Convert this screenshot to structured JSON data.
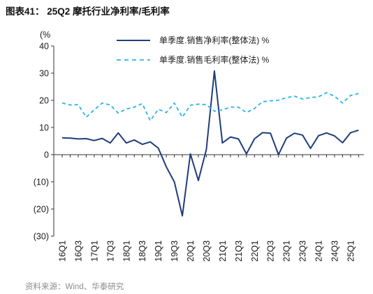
{
  "header": {
    "title": "图表41： 25Q2 摩托行业净利率/毛利率"
  },
  "chart_data": {
    "type": "line",
    "ylabel": "(%",
    "ylim": [
      -30,
      40
    ],
    "yticks": [
      40,
      30,
      20,
      10,
      0,
      -10,
      -20,
      -30
    ],
    "ytick_labels": [
      "40",
      "30",
      "20",
      "10",
      "0",
      "(10)",
      "(20)",
      "(30)"
    ],
    "x_tick_labels": [
      "16Q1",
      "16Q3",
      "17Q1",
      "17Q3",
      "18Q1",
      "18Q3",
      "19Q1",
      "19Q3",
      "20Q1",
      "20Q3",
      "21Q1",
      "21Q3",
      "22Q1",
      "22Q3",
      "23Q1",
      "23Q3",
      "24Q1",
      "24Q3",
      "25Q1"
    ],
    "grid": false,
    "legend": "top-center",
    "series": [
      {
        "name": "单季度.销售净利率(整体法) %",
        "style": "solid",
        "color": "#1f3d7a",
        "values": [
          6.2,
          6.1,
          5.8,
          5.9,
          5.2,
          6.0,
          4.3,
          8.0,
          4.3,
          5.4,
          3.8,
          4.7,
          2.4,
          -4.5,
          -10.0,
          -22.5,
          0.3,
          -9.5,
          2.0,
          30.8,
          4.3,
          6.5,
          5.8,
          0.3,
          5.8,
          8.1,
          7.9,
          0.0,
          6.1,
          7.9,
          7.2,
          2.3,
          7.0,
          8.0,
          6.9,
          4.4,
          8.1,
          9.0
        ]
      },
      {
        "name": "单季度.销售毛利率(整体法) %",
        "style": "dashed",
        "color": "#2bb3e8",
        "values": [
          19.0,
          18.3,
          18.4,
          13.8,
          16.5,
          19.0,
          18.3,
          15.3,
          16.8,
          17.5,
          18.8,
          12.5,
          16.7,
          15.5,
          19.0,
          13.8,
          18.2,
          18.6,
          18.4,
          16.0,
          16.5,
          17.5,
          17.5,
          15.5,
          17.0,
          19.5,
          19.8,
          20.0,
          21.0,
          21.5,
          20.5,
          21.0,
          21.3,
          22.8,
          21.5,
          19.0,
          21.8,
          22.5
        ]
      }
    ]
  },
  "footer": {
    "source": "资料来源：Wind、华泰研究"
  }
}
